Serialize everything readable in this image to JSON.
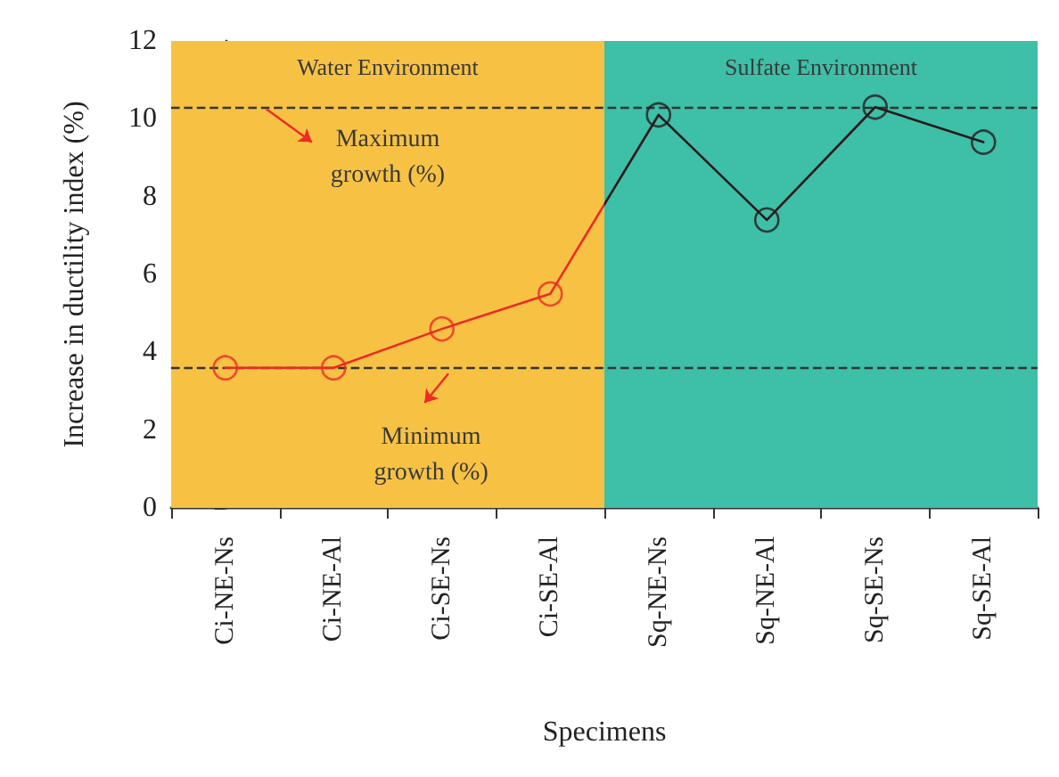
{
  "chart_data": {
    "type": "line",
    "xlabel": "Specimens",
    "ylabel": "Increase in ductility index (%)",
    "categories": [
      "Ci-NE-Ns",
      "Ci-NE-Al",
      "Ci-SE-Ns",
      "Ci-SE-Al",
      "Sq-NE-Ns",
      "Sq-NE-Al",
      "Sq-SE-Ns",
      "Sq-SE-Al"
    ],
    "series": [
      {
        "colors": [
          "#ee2a24",
          "#ee2a24",
          "#ee2a24",
          "#ee2a24",
          "#2a1a1a",
          "#2a1a1a",
          "#2a1a1a",
          "#2a1a1a"
        ],
        "values": [
          3.6,
          3.6,
          4.6,
          5.5,
          10.1,
          7.4,
          10.3,
          9.4
        ]
      }
    ],
    "ylim": [
      0,
      12
    ],
    "yticks": [
      0,
      2,
      4,
      6,
      8,
      10,
      12
    ],
    "marker": "circle",
    "line_style": "solid",
    "bands": [
      {
        "axis": "x",
        "from": "Ci-NE-Ns",
        "to": "Ci-SE-Al",
        "label": "Water Environment",
        "color": "#f7c244"
      },
      {
        "axis": "x",
        "from": "Sq-NE-Ns",
        "to": "Sq-SE-Al",
        "label": "Sulfate Environment",
        "color": "#3dbfa8"
      }
    ],
    "ref_lines": [
      {
        "axis": "y",
        "value": 10.3,
        "label": "Maximum growth (%)",
        "line_style": "dashed"
      },
      {
        "axis": "y",
        "value": 3.6,
        "label": "Minimum growth (%)",
        "line_style": "dashed"
      }
    ]
  }
}
